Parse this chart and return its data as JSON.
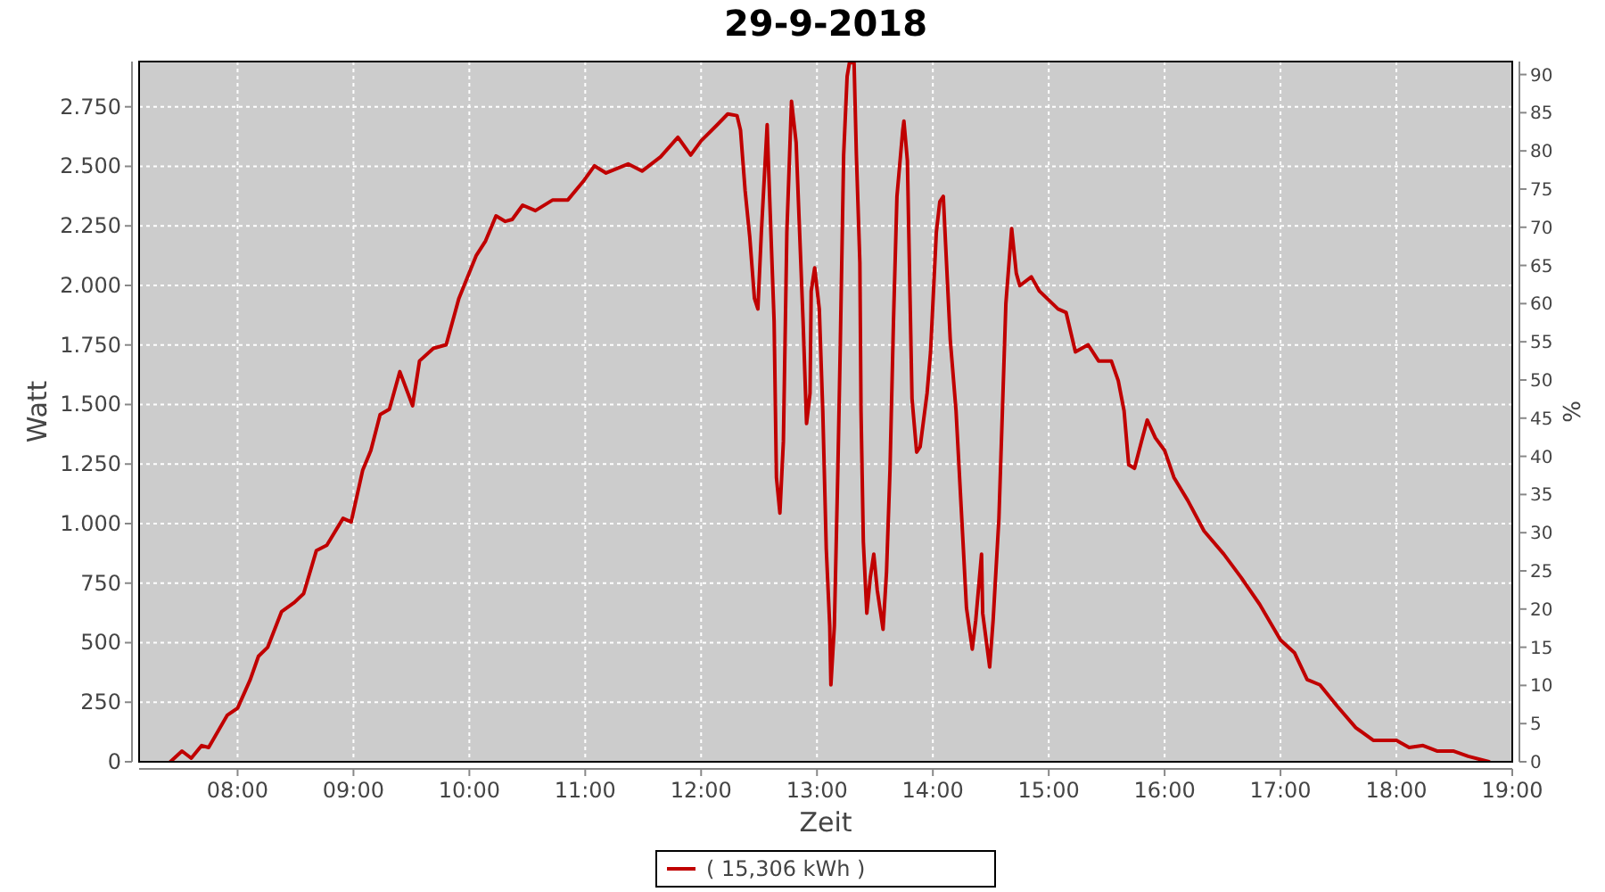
{
  "chart_data": {
    "type": "line",
    "title": "29-9-2018",
    "xlabel": "Zeit",
    "ylabel": "Watt",
    "y2label": "%",
    "xlim": [
      7.15,
      19.0
    ],
    "xticks": [
      {
        "value": 8,
        "label": "08:00"
      },
      {
        "value": 9,
        "label": "09:00"
      },
      {
        "value": 10,
        "label": "10:00"
      },
      {
        "value": 11,
        "label": "11:00"
      },
      {
        "value": 12,
        "label": "12:00"
      },
      {
        "value": 13,
        "label": "13:00"
      },
      {
        "value": 14,
        "label": "14:00"
      },
      {
        "value": 15,
        "label": "15:00"
      },
      {
        "value": 16,
        "label": "16:00"
      },
      {
        "value": 17,
        "label": "17:00"
      },
      {
        "value": 18,
        "label": "18:00"
      },
      {
        "value": 19,
        "label": "19:00"
      }
    ],
    "ylim": [
      0,
      2940
    ],
    "yticks": [
      0,
      250,
      500,
      750,
      {
        "value": 1000,
        "label": "1.000"
      },
      {
        "value": 1250,
        "label": "1.250"
      },
      {
        "value": 1500,
        "label": "1.500"
      },
      {
        "value": 1750,
        "label": "1.750"
      },
      {
        "value": 2000,
        "label": "2.000"
      },
      {
        "value": 2250,
        "label": "2.250"
      },
      {
        "value": 2500,
        "label": "2.500"
      },
      {
        "value": 2750,
        "label": "2.750"
      }
    ],
    "y2lim": [
      0,
      91.7
    ],
    "y2ticks": [
      0,
      5,
      10,
      15,
      20,
      25,
      30,
      35,
      40,
      45,
      50,
      55,
      60,
      65,
      70,
      75,
      80,
      85,
      90
    ],
    "grid": true,
    "legend": "bottom",
    "line_style": "solid",
    "series": [
      {
        "name": "( 15,306 kWh )",
        "color": "#c00000",
        "x": [
          7.42,
          7.52,
          7.6,
          7.69,
          7.75,
          7.91,
          8.0,
          8.11,
          8.18,
          8.26,
          8.38,
          8.49,
          8.57,
          8.68,
          8.77,
          8.91,
          8.98,
          9.08,
          9.15,
          9.23,
          9.31,
          9.4,
          9.51,
          9.57,
          9.69,
          9.8,
          9.91,
          10.06,
          10.14,
          10.23,
          10.31,
          10.37,
          10.46,
          10.57,
          10.72,
          10.85,
          10.98,
          11.08,
          11.18,
          11.37,
          11.49,
          11.65,
          11.8,
          11.91,
          12.0,
          12.14,
          12.23,
          12.31,
          12.34,
          12.38,
          12.42,
          12.46,
          12.49,
          12.52,
          12.57,
          12.58,
          12.63,
          12.65,
          12.68,
          12.71,
          12.74,
          12.78,
          12.82,
          12.85,
          12.88,
          12.91,
          12.94,
          12.95,
          12.98,
          13.02,
          13.05,
          13.08,
          13.11,
          13.12,
          13.15,
          13.18,
          13.2,
          13.23,
          13.26,
          13.28,
          13.32,
          13.34,
          13.37,
          13.38,
          13.4,
          13.43,
          13.46,
          13.49,
          13.52,
          13.57,
          13.6,
          13.63,
          13.66,
          13.69,
          13.74,
          13.75,
          13.78,
          13.82,
          13.86,
          13.89,
          13.95,
          13.98,
          14.03,
          14.06,
          14.09,
          14.11,
          14.15,
          14.2,
          14.26,
          14.29,
          14.34,
          14.37,
          14.42,
          14.43,
          14.49,
          14.52,
          14.57,
          14.6,
          14.63,
          14.68,
          14.72,
          14.75,
          14.85,
          14.92,
          15.08,
          15.15,
          15.23,
          15.34,
          15.43,
          15.54,
          15.6,
          15.65,
          15.69,
          15.74,
          15.8,
          15.85,
          15.92,
          16.0,
          16.08,
          16.2,
          16.34,
          16.51,
          16.66,
          16.82,
          17.0,
          17.12,
          17.23,
          17.34,
          17.49,
          17.65,
          17.8,
          18.0,
          18.11,
          18.23,
          18.35,
          18.49,
          18.62,
          18.8
        ],
        "values": [
          0,
          45,
          15,
          68,
          60,
          195,
          225,
          346,
          443,
          481,
          631,
          669,
          706,
          887,
          909,
          1022,
          1007,
          1225,
          1307,
          1458,
          1480,
          1638,
          1495,
          1683,
          1736,
          1751,
          1946,
          2126,
          2187,
          2292,
          2269,
          2277,
          2337,
          2314,
          2359,
          2359,
          2435,
          2502,
          2472,
          2510,
          2480,
          2540,
          2622,
          2547,
          2607,
          2675,
          2720,
          2713,
          2652,
          2397,
          2202,
          1946,
          1901,
          2224,
          2675,
          2525,
          1848,
          1194,
          1044,
          1345,
          2224,
          2773,
          2600,
          2224,
          1848,
          1420,
          1548,
          1976,
          2074,
          1901,
          1473,
          894,
          571,
          323,
          571,
          1225,
          1721,
          2547,
          2878,
          2935,
          2935,
          2547,
          2096,
          1473,
          924,
          624,
          774,
          872,
          721,
          556,
          796,
          1225,
          1848,
          2374,
          2652,
          2690,
          2525,
          1525,
          1300,
          1322,
          1548,
          1721,
          2224,
          2352,
          2374,
          2172,
          1773,
          1473,
          924,
          646,
          473,
          594,
          872,
          624,
          398,
          594,
          1022,
          1473,
          1924,
          2239,
          2051,
          1999,
          2036,
          1976,
          1901,
          1886,
          1721,
          1751,
          1683,
          1683,
          1600,
          1473,
          1247,
          1232,
          1345,
          1435,
          1360,
          1307,
          1194,
          1097,
          969,
          872,
          774,
          661,
          511,
          458,
          345,
          323,
          233,
          143,
          90,
          90,
          60,
          68,
          45,
          45,
          23,
          0
        ]
      }
    ]
  }
}
